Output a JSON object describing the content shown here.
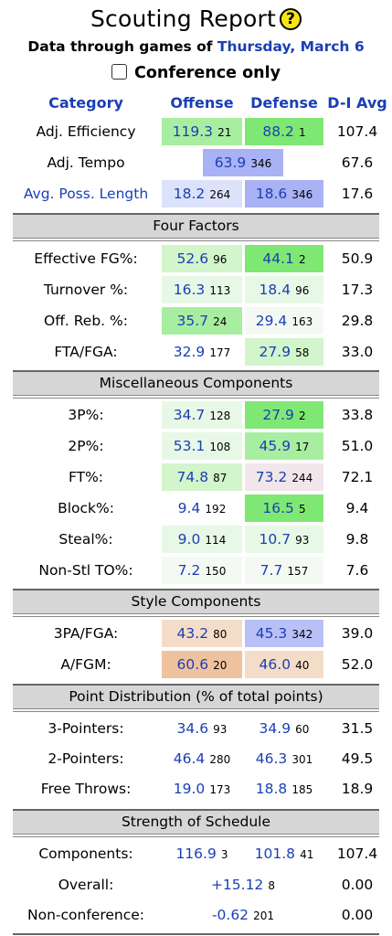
{
  "header": {
    "title": "Scouting Report",
    "help_icon": "?",
    "subtitle_prefix": "Data through games of ",
    "subtitle_date": "Thursday, March 6",
    "conference_only_label": "Conference only"
  },
  "columns": {
    "category": "Category",
    "offense": "Offense",
    "defense": "Defense",
    "avg": "D-I Avg"
  },
  "top": [
    {
      "label": "Adj. Efficiency",
      "off": "119.3",
      "off_rank": "21",
      "def": "88.2",
      "def_rank": "1",
      "avg": "107.4"
    },
    {
      "label": "Adj. Tempo",
      "mid": "63.9",
      "mid_rank": "346",
      "avg": "67.6"
    },
    {
      "label": "Avg. Poss. Length",
      "off": "18.2",
      "off_rank": "264",
      "def": "18.6",
      "def_rank": "346",
      "avg": "17.6"
    }
  ],
  "four_factors": {
    "title": "Four Factors",
    "rows": [
      {
        "label": "Effective FG%:",
        "off": "52.6",
        "off_rank": "96",
        "def": "44.1",
        "def_rank": "2",
        "avg": "50.9"
      },
      {
        "label": "Turnover %:",
        "off": "16.3",
        "off_rank": "113",
        "def": "18.4",
        "def_rank": "96",
        "avg": "17.3"
      },
      {
        "label": "Off. Reb. %:",
        "off": "35.7",
        "off_rank": "24",
        "def": "29.4",
        "def_rank": "163",
        "avg": "29.8"
      },
      {
        "label": "FTA/FGA:",
        "off": "32.9",
        "off_rank": "177",
        "def": "27.9",
        "def_rank": "58",
        "avg": "33.0"
      }
    ]
  },
  "misc": {
    "title": "Miscellaneous Components",
    "rows": [
      {
        "label": "3P%:",
        "off": "34.7",
        "off_rank": "128",
        "def": "27.9",
        "def_rank": "2",
        "avg": "33.8"
      },
      {
        "label": "2P%:",
        "off": "53.1",
        "off_rank": "108",
        "def": "45.9",
        "def_rank": "17",
        "avg": "51.0"
      },
      {
        "label": "FT%:",
        "off": "74.8",
        "off_rank": "87",
        "def": "73.2",
        "def_rank": "244",
        "avg": "72.1"
      },
      {
        "label": "Block%:",
        "off": "9.4",
        "off_rank": "192",
        "def": "16.5",
        "def_rank": "5",
        "avg": "9.4"
      },
      {
        "label": "Steal%:",
        "off": "9.0",
        "off_rank": "114",
        "def": "10.7",
        "def_rank": "93",
        "avg": "9.8"
      },
      {
        "label": "Non-Stl TO%:",
        "off": "7.2",
        "off_rank": "150",
        "def": "7.7",
        "def_rank": "157",
        "avg": "7.6"
      }
    ]
  },
  "style": {
    "title": "Style Components",
    "rows": [
      {
        "label": "3PA/FGA:",
        "off": "43.2",
        "off_rank": "80",
        "def": "45.3",
        "def_rank": "342",
        "avg": "39.0"
      },
      {
        "label": "A/FGM:",
        "off": "60.6",
        "off_rank": "20",
        "def": "46.0",
        "def_rank": "40",
        "avg": "52.0"
      }
    ]
  },
  "points": {
    "title": "Point Distribution (% of total points)",
    "rows": [
      {
        "label": "3-Pointers:",
        "off": "34.6",
        "off_rank": "93",
        "def": "34.9",
        "def_rank": "60",
        "avg": "31.5"
      },
      {
        "label": "2-Pointers:",
        "off": "46.4",
        "off_rank": "280",
        "def": "46.3",
        "def_rank": "301",
        "avg": "49.5"
      },
      {
        "label": "Free Throws:",
        "off": "19.0",
        "off_rank": "173",
        "def": "18.8",
        "def_rank": "185",
        "avg": "18.9"
      }
    ]
  },
  "schedule": {
    "title": "Strength of Schedule",
    "rows": [
      {
        "label": "Components:",
        "off": "116.9",
        "off_rank": "3",
        "def": "101.8",
        "def_rank": "41",
        "avg": "107.4"
      },
      {
        "label": "Overall:",
        "mid": "+15.12",
        "mid_rank": "8",
        "avg": "0.00"
      },
      {
        "label": "Non-conference:",
        "mid": "-0.62",
        "mid_rank": "201",
        "avg": "0.00"
      }
    ]
  },
  "colors": {
    "link_blue": "#1a3fb5",
    "green_strong": "#7fe874",
    "green_mid": "#a8eea0",
    "green_light": "#d2f5cc",
    "green_faint": "#e8f8e6",
    "blue_strong": "#a8b2f4",
    "blue_light": "#dde2fb",
    "pink_faint": "#f1e6ea",
    "orange_light": "#f4ddc8",
    "orange_mid": "#efc29e",
    "band_gray": "#d6d6d6"
  }
}
